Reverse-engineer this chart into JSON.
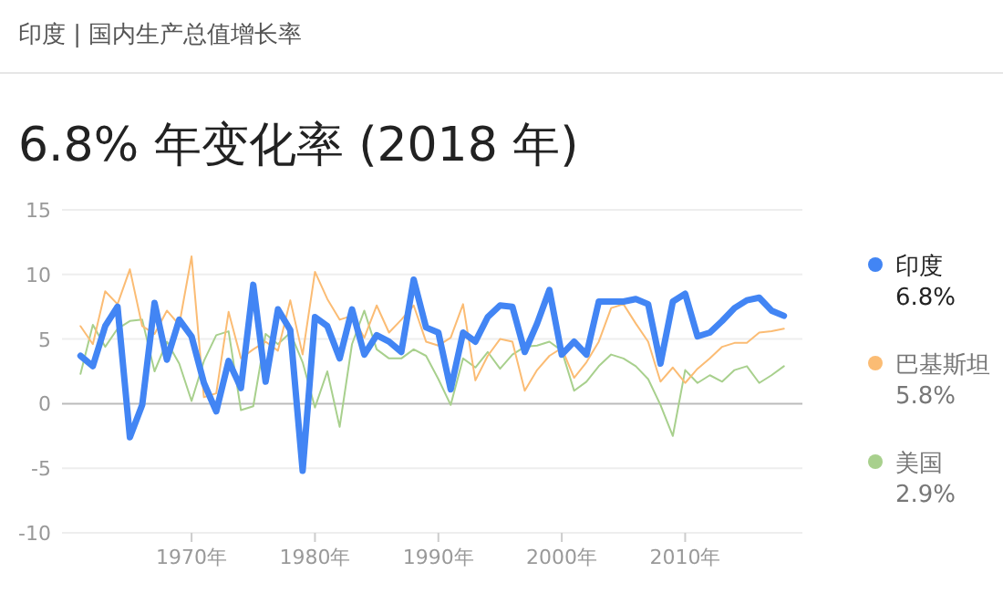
{
  "chart_data": {
    "type": "line",
    "title": "6.8% 年变化率 (2018 年)",
    "subtitle": "印度 | 国内生产总值增长率",
    "x": [
      1961,
      1962,
      1963,
      1964,
      1965,
      1966,
      1967,
      1968,
      1969,
      1970,
      1971,
      1972,
      1973,
      1974,
      1975,
      1976,
      1977,
      1978,
      1979,
      1980,
      1981,
      1982,
      1983,
      1984,
      1985,
      1986,
      1987,
      1988,
      1989,
      1990,
      1991,
      1992,
      1993,
      1994,
      1995,
      1996,
      1997,
      1998,
      1999,
      2000,
      2001,
      2002,
      2003,
      2004,
      2005,
      2006,
      2007,
      2008,
      2009,
      2010,
      2011,
      2012,
      2013,
      2014,
      2015,
      2016,
      2017,
      2018
    ],
    "series": [
      {
        "name": "印度",
        "color": "#4285f4",
        "values": [
          3.7,
          2.9,
          6.0,
          7.5,
          -2.6,
          -0.1,
          7.8,
          3.4,
          6.5,
          5.2,
          1.6,
          -0.6,
          3.3,
          1.2,
          9.2,
          1.7,
          7.3,
          5.7,
          -5.2,
          6.7,
          6.0,
          3.5,
          7.3,
          3.8,
          5.3,
          4.8,
          4.0,
          9.6,
          5.9,
          5.5,
          1.1,
          5.5,
          4.8,
          6.7,
          7.6,
          7.5,
          4.0,
          6.2,
          8.8,
          3.8,
          4.8,
          3.8,
          7.9,
          7.9,
          7.9,
          8.1,
          7.7,
          3.1,
          7.9,
          8.5,
          5.2,
          5.5,
          6.4,
          7.4,
          8.0,
          8.2,
          7.2,
          6.8
        ]
      },
      {
        "name": "巴基斯坦",
        "color": "#fbbc74",
        "values": [
          6.0,
          4.6,
          8.7,
          7.7,
          10.4,
          6.0,
          5.4,
          7.2,
          6.1,
          11.4,
          0.5,
          0.8,
          7.1,
          3.5,
          4.2,
          4.8,
          4.1,
          8.0,
          3.8,
          10.2,
          8.1,
          6.5,
          6.8,
          5.1,
          7.6,
          5.5,
          6.5,
          7.6,
          4.8,
          4.5,
          5.1,
          7.7,
          1.8,
          3.7,
          5.0,
          4.8,
          1.0,
          2.6,
          3.7,
          4.3,
          2.0,
          3.2,
          4.8,
          7.4,
          7.7,
          6.2,
          4.8,
          1.7,
          2.8,
          1.6,
          2.7,
          3.5,
          4.4,
          4.7,
          4.7,
          5.5,
          5.6,
          5.8
        ]
      },
      {
        "name": "美国",
        "color": "#a8d08d",
        "values": [
          2.3,
          6.1,
          4.4,
          5.8,
          6.4,
          6.5,
          2.5,
          4.8,
          3.1,
          0.2,
          3.3,
          5.3,
          5.6,
          -0.5,
          -0.2,
          5.4,
          4.6,
          5.5,
          3.2,
          -0.3,
          2.5,
          -1.8,
          4.6,
          7.2,
          4.2,
          3.5,
          3.5,
          4.2,
          3.7,
          1.9,
          -0.1,
          3.5,
          2.8,
          4.0,
          2.7,
          3.8,
          4.4,
          4.5,
          4.8,
          4.1,
          1.0,
          1.7,
          2.9,
          3.8,
          3.5,
          2.9,
          1.9,
          -0.1,
          -2.5,
          2.6,
          1.6,
          2.2,
          1.7,
          2.6,
          2.9,
          1.6,
          2.2,
          2.9
        ]
      }
    ],
    "annotations": [
      "6.8%",
      "5.8%",
      "2.9%"
    ],
    "xlim": [
      1959.5,
      2019.5
    ],
    "xticks": [
      {
        "value": 1970,
        "label": "1970年"
      },
      {
        "value": 1980,
        "label": "1980年"
      },
      {
        "value": 1990,
        "label": "1990年"
      },
      {
        "value": 2000,
        "label": "2000年"
      },
      {
        "value": 2010,
        "label": "2010年"
      }
    ],
    "ylim": [
      -10,
      15
    ],
    "yticks": [
      -10,
      -5,
      0,
      5,
      10,
      15
    ],
    "grid": "y",
    "legend": "right"
  }
}
